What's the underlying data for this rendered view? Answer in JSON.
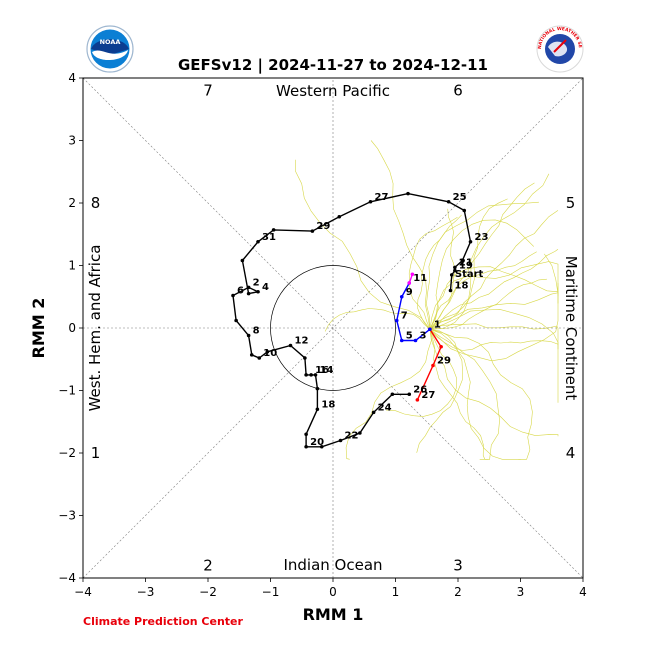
{
  "chart_data": {
    "type": "line",
    "title": "GEFSv12 | 2024-11-27 to 2024-12-11",
    "xlabel": "RMM 1",
    "ylabel": "RMM 2",
    "xlim": [
      -4,
      4
    ],
    "ylim": [
      -4,
      4
    ],
    "xticks": [
      "−4",
      "−3",
      "−2",
      "−1",
      "0",
      "1",
      "2",
      "3",
      "4"
    ],
    "yticks": [
      "−4",
      "−3",
      "−2",
      "−1",
      "0",
      "1",
      "2",
      "3",
      "4"
    ],
    "regions": {
      "top": "Western Pacific",
      "bottom": "Indian Ocean",
      "left": "West. Hem. and Africa",
      "right": "Maritime Continent"
    },
    "phases": [
      {
        "label": "1",
        "x": -3.8,
        "y": -2.0
      },
      {
        "label": "2",
        "x": -2.0,
        "y": -3.8
      },
      {
        "label": "3",
        "x": 2.0,
        "y": -3.8
      },
      {
        "label": "4",
        "x": 3.8,
        "y": -2.0
      },
      {
        "label": "5",
        "x": 3.8,
        "y": 2.0
      },
      {
        "label": "6",
        "x": 2.0,
        "y": 3.8
      },
      {
        "label": "7",
        "x": -2.0,
        "y": 3.8
      },
      {
        "label": "8",
        "x": -3.8,
        "y": 2.0
      }
    ],
    "observed": {
      "color": "#000000",
      "points": [
        {
          "x": 1.22,
          "y": -1.06,
          "label": "26"
        },
        {
          "x": 0.95,
          "y": -1.06,
          "label": ""
        },
        {
          "x": 0.65,
          "y": -1.35,
          "label": "24"
        },
        {
          "x": 0.43,
          "y": -1.68,
          "label": ""
        },
        {
          "x": 0.12,
          "y": -1.8,
          "label": "22"
        },
        {
          "x": -0.18,
          "y": -1.9,
          "label": ""
        },
        {
          "x": -0.43,
          "y": -1.9,
          "label": "20"
        },
        {
          "x": -0.43,
          "y": -1.7,
          "label": ""
        },
        {
          "x": -0.25,
          "y": -1.3,
          "label": "18"
        },
        {
          "x": -0.25,
          "y": -0.97,
          "label": ""
        },
        {
          "x": -0.28,
          "y": -0.75,
          "label": "14"
        },
        {
          "x": -0.35,
          "y": -0.75,
          "label": "16"
        },
        {
          "x": -0.43,
          "y": -0.75,
          "label": ""
        },
        {
          "x": -0.45,
          "y": -0.48,
          "label": ""
        },
        {
          "x": -0.68,
          "y": -0.28,
          "label": "12"
        },
        {
          "x": -1.05,
          "y": -0.38,
          "label": ""
        },
        {
          "x": -1.18,
          "y": -0.48,
          "label": "10"
        },
        {
          "x": -1.3,
          "y": -0.43,
          "label": ""
        },
        {
          "x": -1.35,
          "y": -0.12,
          "label": "8"
        },
        {
          "x": -1.55,
          "y": 0.12,
          "label": ""
        },
        {
          "x": -1.6,
          "y": 0.52,
          "label": "6"
        },
        {
          "x": -1.35,
          "y": 0.65,
          "label": "2"
        },
        {
          "x": -1.2,
          "y": 0.58,
          "label": "4"
        },
        {
          "x": -1.35,
          "y": 0.55,
          "label": ""
        },
        {
          "x": -1.45,
          "y": 1.08,
          "label": ""
        },
        {
          "x": -1.2,
          "y": 1.38,
          "label": "31"
        },
        {
          "x": -0.95,
          "y": 1.57,
          "label": ""
        },
        {
          "x": -0.33,
          "y": 1.55,
          "label": "29"
        },
        {
          "x": 0.1,
          "y": 1.78,
          "label": ""
        },
        {
          "x": 0.6,
          "y": 2.02,
          "label": "27"
        },
        {
          "x": 1.2,
          "y": 2.15,
          "label": ""
        },
        {
          "x": 1.85,
          "y": 2.02,
          "label": "25"
        },
        {
          "x": 2.1,
          "y": 1.88,
          "label": ""
        },
        {
          "x": 2.2,
          "y": 1.38,
          "label": "23"
        },
        {
          "x": 2.07,
          "y": 1.08,
          "label": ""
        },
        {
          "x": 1.95,
          "y": 0.97,
          "label": "21"
        },
        {
          "x": 1.95,
          "y": 0.92,
          "label": "19"
        },
        {
          "x": 1.9,
          "y": 0.85,
          "label": ""
        },
        {
          "x": 1.88,
          "y": 0.6,
          "label": "18"
        }
      ]
    },
    "forecast_mean": [
      {
        "name": "forecast-red",
        "color": "#ff0000",
        "points": [
          {
            "x": 1.55,
            "y": -0.02,
            "label": "1"
          },
          {
            "x": 1.73,
            "y": -0.3,
            "label": ""
          },
          {
            "x": 1.6,
            "y": -0.6,
            "label": "29"
          },
          {
            "x": 1.35,
            "y": -1.15,
            "label": "27"
          }
        ]
      },
      {
        "name": "forecast-blue",
        "color": "#0000ff",
        "points": [
          {
            "x": 1.55,
            "y": -0.02,
            "label": ""
          },
          {
            "x": 1.32,
            "y": -0.2,
            "label": "3"
          },
          {
            "x": 1.1,
            "y": -0.2,
            "label": "5"
          },
          {
            "x": 1.02,
            "y": 0.12,
            "label": "7"
          },
          {
            "x": 1.1,
            "y": 0.5,
            "label": "9"
          },
          {
            "x": 1.22,
            "y": 0.72,
            "label": "11"
          }
        ]
      },
      {
        "name": "forecast-magenta",
        "color": "#ff00ff",
        "points": [
          {
            "x": 1.22,
            "y": 0.72,
            "label": ""
          },
          {
            "x": 1.27,
            "y": 0.86,
            "label": ""
          }
        ]
      }
    ],
    "ensemble_color": "#d8d84a",
    "annotations": [
      {
        "text": "Start",
        "x": 1.95,
        "y": 0.82
      }
    ],
    "circle_radius": 1,
    "grid": false,
    "credit": "Climate Prediction Center"
  },
  "logos": {
    "left": {
      "name": "noaa-logo",
      "text": "NOAA",
      "color": "#0b5aa8"
    },
    "right": {
      "name": "nws-logo",
      "text": "NATIONAL WEATHER SERVICE",
      "color": "#e8000b"
    }
  }
}
